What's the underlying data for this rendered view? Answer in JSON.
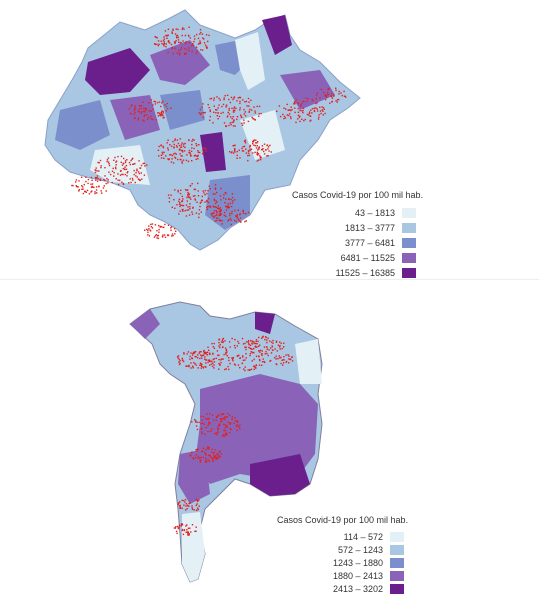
{
  "maps": [
    {
      "legend": {
        "title": "Casos Covid-19 por 100 mil hab.",
        "classes": [
          {
            "label": "43 – 1813",
            "color": "#e3f1f7"
          },
          {
            "label": "1813 – 3777",
            "color": "#a9c6e3"
          },
          {
            "label": "3777 – 6481",
            "color": "#7b8fcc"
          },
          {
            "label": "6481 – 11525",
            "color": "#8a63b8"
          },
          {
            "label": "11525 – 16385",
            "color": "#6a1f8c"
          }
        ]
      }
    },
    {
      "legend": {
        "title": "Casos Covid-19 por 100 mil hab.",
        "classes": [
          {
            "label": "114 – 572",
            "color": "#e3f1f7"
          },
          {
            "label": "572 – 1243",
            "color": "#a9c6e3"
          },
          {
            "label": "1243 – 1880",
            "color": "#7b8fcc"
          },
          {
            "label": "1880 – 2413",
            "color": "#8a63b8"
          },
          {
            "label": "2413 – 3202",
            "color": "#6a1f8c"
          }
        ]
      }
    }
  ],
  "hotspot_color": "#e0221e"
}
